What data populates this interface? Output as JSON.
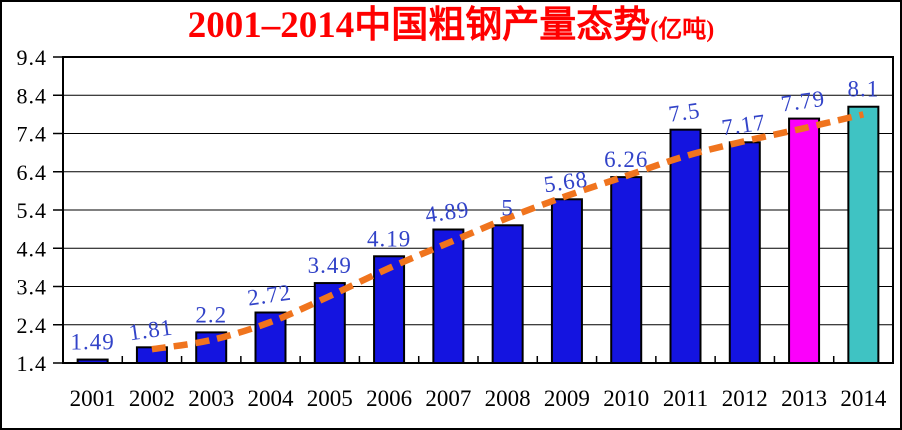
{
  "title": {
    "text": "2001–2014中国粗钢产量态势",
    "unit": "(亿吨)",
    "color": "#FF0000"
  },
  "chart_data": {
    "type": "bar",
    "title": "2001–2014中国粗钢产量态势(亿吨)",
    "xlabel": "",
    "ylabel": "",
    "categories": [
      "2001",
      "2002",
      "2003",
      "2004",
      "2005",
      "2006",
      "2007",
      "2008",
      "2009",
      "2010",
      "2011",
      "2012",
      "2013",
      "2014"
    ],
    "values": [
      1.49,
      1.81,
      2.2,
      2.72,
      3.49,
      4.19,
      4.89,
      5,
      5.68,
      6.26,
      7.5,
      7.17,
      7.79,
      8.1
    ],
    "bar_colors": [
      "#1414E0",
      "#1414E0",
      "#1414E0",
      "#1414E0",
      "#1414E0",
      "#1414E0",
      "#1414E0",
      "#1414E0",
      "#1414E0",
      "#1414E0",
      "#1414E0",
      "#1414E0",
      "#FB00FB",
      "#3FC3C3"
    ],
    "bar_outline_color": "#000000",
    "trend": {
      "name": "dashed-trend-line",
      "style": "dashed",
      "color": "#F0741E",
      "values": [
        null,
        1.76,
        2.0,
        2.47,
        3.15,
        3.88,
        4.54,
        5.19,
        5.77,
        6.29,
        6.81,
        7.2,
        7.54,
        7.9
      ]
    },
    "ylim": [
      1.4,
      9.4
    ],
    "yticks": [
      "1.4",
      "2.4",
      "3.4",
      "4.4",
      "5.4",
      "6.4",
      "7.4",
      "8.4",
      "9.4"
    ],
    "grid": true,
    "legend": "none",
    "label_color": "#3243C8",
    "axis_text_color": "#000000"
  }
}
